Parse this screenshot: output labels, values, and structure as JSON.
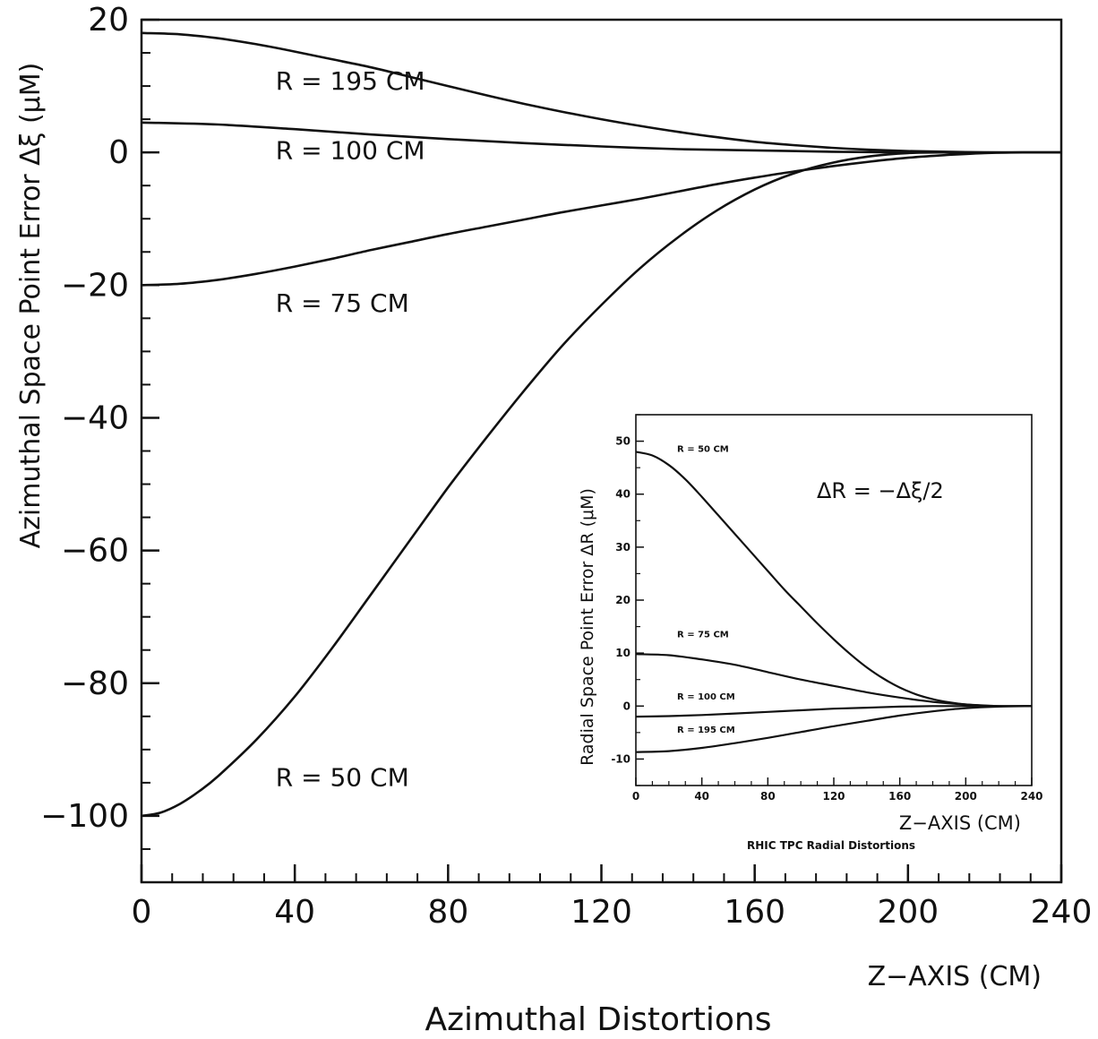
{
  "chart_data": [
    {
      "type": "line",
      "title": "",
      "caption": "Azimuthal Distortions",
      "xlabel": "Z−AXIS (CM)",
      "ylabel": "Azimuthal Space Point Error Δξ (μM)",
      "xlim": [
        0,
        240
      ],
      "ylim": [
        -110,
        20
      ],
      "xticks": [
        0,
        40,
        80,
        120,
        160,
        200,
        240
      ],
      "yticks": [
        20,
        0,
        -20,
        -40,
        -60,
        -80,
        -100
      ],
      "x_minor_step": 8,
      "y_minor_step": 5,
      "grid": false,
      "series": [
        {
          "name": "R = 195 CM",
          "x": [
            0,
            10,
            20,
            30,
            40,
            50,
            60,
            70,
            80,
            90,
            100,
            110,
            120,
            130,
            140,
            150,
            160,
            170,
            180,
            190,
            200,
            210,
            220,
            230,
            240
          ],
          "y": [
            18,
            17.8,
            17.2,
            16.3,
            15.2,
            14,
            12.8,
            11.4,
            10,
            8.6,
            7.3,
            6.1,
            5,
            4,
            3.1,
            2.3,
            1.6,
            1.1,
            0.7,
            0.4,
            0.2,
            0.1,
            0,
            0,
            0
          ]
        },
        {
          "name": "R = 100 CM",
          "x": [
            0,
            20,
            40,
            60,
            80,
            100,
            120,
            140,
            160,
            180,
            200,
            220,
            240
          ],
          "y": [
            4.5,
            4.2,
            3.5,
            2.7,
            2,
            1.4,
            0.9,
            0.5,
            0.3,
            0.1,
            0,
            0,
            0
          ]
        },
        {
          "name": "R = 75  CM",
          "x": [
            0,
            10,
            20,
            30,
            40,
            50,
            60,
            70,
            80,
            90,
            100,
            110,
            120,
            130,
            140,
            150,
            160,
            170,
            180,
            190,
            200,
            210,
            220,
            230,
            240
          ],
          "y": [
            -20,
            -19.8,
            -19.2,
            -18.3,
            -17.2,
            -16,
            -14.7,
            -13.5,
            -12.3,
            -11.2,
            -10.1,
            -9,
            -8,
            -7,
            -5.9,
            -4.8,
            -3.8,
            -2.9,
            -2.1,
            -1.4,
            -0.8,
            -0.4,
            -0.1,
            0,
            0
          ]
        },
        {
          "name": "R = 50  CM",
          "x": [
            0,
            5,
            10,
            15,
            20,
            30,
            40,
            50,
            60,
            70,
            80,
            90,
            100,
            110,
            120,
            130,
            140,
            150,
            160,
            170,
            180,
            190,
            200,
            210,
            220,
            230,
            240
          ],
          "y": [
            -100,
            -99.5,
            -98.2,
            -96.3,
            -94,
            -88.5,
            -82,
            -74.5,
            -66.5,
            -58.5,
            -50.5,
            -43,
            -35.8,
            -29,
            -23,
            -17.5,
            -12.8,
            -8.8,
            -5.6,
            -3.2,
            -1.6,
            -0.6,
            -0.1,
            0,
            0,
            0,
            0
          ]
        }
      ],
      "labels": [
        {
          "text": "R = 195 CM",
          "x": 35,
          "y": 9.5
        },
        {
          "text": "R = 100 CM",
          "x": 35,
          "y": -1
        },
        {
          "text": "R = 75  CM",
          "x": 35,
          "y": -24
        },
        {
          "text": "R = 50  CM",
          "x": 35,
          "y": -95.5
        }
      ]
    },
    {
      "type": "line",
      "title": "",
      "caption": "RHIC TPC Radial Distortions",
      "annotation": "ΔR = −Δξ/2",
      "xlabel": "Z−AXIS (CM)",
      "ylabel": "Radial Space Point Error ΔR (μM)",
      "xlim": [
        0,
        240
      ],
      "ylim": [
        -15,
        55
      ],
      "xticks": [
        0,
        40,
        80,
        120,
        160,
        200,
        240
      ],
      "yticks": [
        50,
        40,
        30,
        20,
        10,
        0,
        -10
      ],
      "grid": false,
      "series": [
        {
          "name": "R = 50 CM",
          "x": [
            0,
            10,
            20,
            30,
            40,
            50,
            60,
            70,
            80,
            90,
            100,
            110,
            120,
            130,
            140,
            150,
            160,
            170,
            180,
            190,
            200,
            210,
            220,
            230,
            240
          ],
          "y": [
            48,
            47.3,
            45.5,
            42.8,
            39.5,
            36,
            32.5,
            29,
            25.5,
            22,
            18.8,
            15.6,
            12.6,
            9.8,
            7.3,
            5.2,
            3.5,
            2.2,
            1.3,
            0.7,
            0.3,
            0.1,
            0,
            0,
            0
          ]
        },
        {
          "name": "R = 75 CM",
          "x": [
            0,
            20,
            40,
            60,
            80,
            100,
            120,
            140,
            160,
            180,
            200,
            220,
            240
          ],
          "y": [
            9.8,
            9.6,
            8.8,
            7.8,
            6.4,
            5,
            3.8,
            2.6,
            1.6,
            0.8,
            0.3,
            0,
            0
          ]
        },
        {
          "name": "R = 100 CM",
          "x": [
            0,
            20,
            40,
            60,
            80,
            100,
            120,
            140,
            160,
            180,
            200,
            220,
            240
          ],
          "y": [
            -2,
            -1.9,
            -1.7,
            -1.4,
            -1.1,
            -0.8,
            -0.5,
            -0.3,
            -0.1,
            0,
            0,
            0,
            0
          ]
        },
        {
          "name": "R = 195 CM",
          "x": [
            0,
            20,
            40,
            60,
            80,
            100,
            120,
            140,
            160,
            180,
            200,
            220,
            240
          ],
          "y": [
            -8.7,
            -8.5,
            -7.9,
            -7,
            -6,
            -4.9,
            -3.8,
            -2.8,
            -1.8,
            -1,
            -0.4,
            -0.1,
            0
          ]
        }
      ],
      "labels": [
        {
          "text": "R = 50 CM",
          "x": 25,
          "y": 48
        },
        {
          "text": "R = 75 CM",
          "x": 25,
          "y": 13
        },
        {
          "text": "R = 100 CM",
          "x": 25,
          "y": 1.2
        },
        {
          "text": "R = 195 CM",
          "x": 25,
          "y": -5
        }
      ]
    }
  ]
}
